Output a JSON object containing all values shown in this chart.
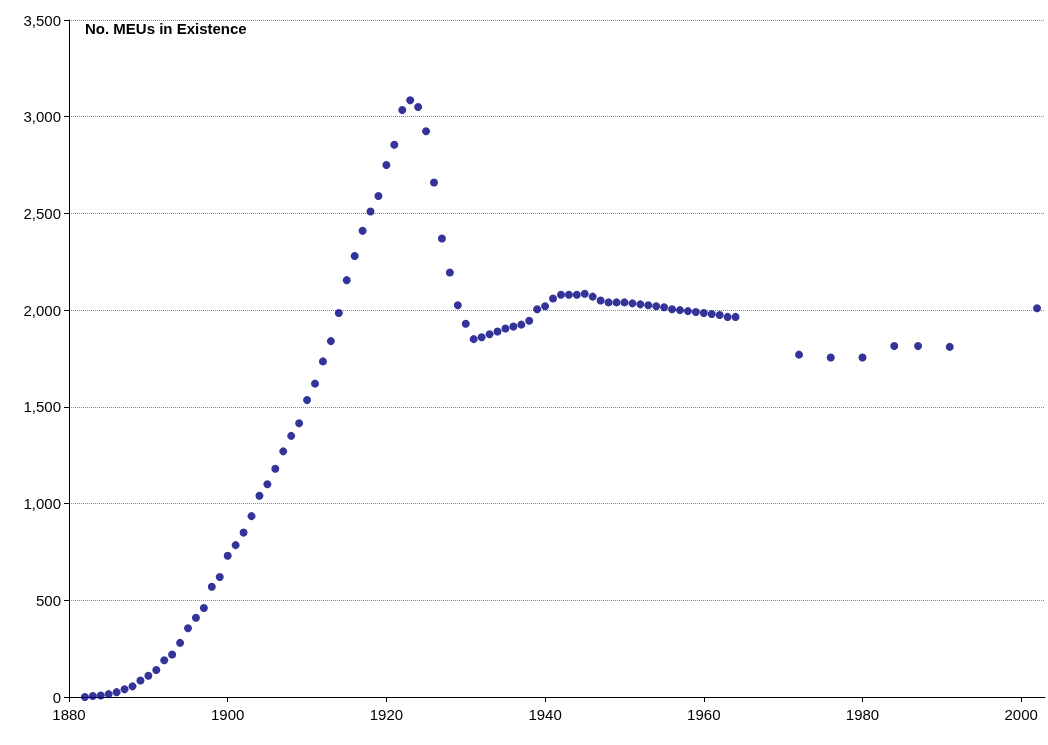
{
  "chart_data": {
    "type": "scatter",
    "title": "No. MEUs in Existence",
    "x": [
      1882,
      1883,
      1884,
      1885,
      1886,
      1887,
      1888,
      1889,
      1890,
      1891,
      1892,
      1893,
      1894,
      1895,
      1896,
      1897,
      1898,
      1899,
      1900,
      1901,
      1902,
      1903,
      1904,
      1905,
      1906,
      1907,
      1908,
      1909,
      1910,
      1911,
      1912,
      1913,
      1914,
      1915,
      1916,
      1917,
      1918,
      1919,
      1920,
      1921,
      1922,
      1923,
      1924,
      1925,
      1926,
      1927,
      1928,
      1929,
      1930,
      1931,
      1932,
      1933,
      1934,
      1935,
      1936,
      1937,
      1938,
      1939,
      1940,
      1941,
      1942,
      1943,
      1944,
      1945,
      1946,
      1947,
      1948,
      1949,
      1950,
      1951,
      1952,
      1953,
      1954,
      1955,
      1956,
      1957,
      1958,
      1959,
      1960,
      1961,
      1962,
      1963,
      1964,
      1972,
      1976,
      1980,
      1984,
      1987,
      1991,
      2002
    ],
    "values": [
      0,
      5,
      8,
      15,
      25,
      40,
      55,
      85,
      110,
      140,
      190,
      220,
      280,
      355,
      410,
      460,
      570,
      620,
      730,
      785,
      850,
      935,
      1040,
      1100,
      1180,
      1270,
      1350,
      1415,
      1535,
      1620,
      1735,
      1840,
      1985,
      2155,
      2280,
      2410,
      2510,
      2590,
      2750,
      2855,
      3035,
      3085,
      3050,
      2925,
      2660,
      2370,
      2195,
      2025,
      1930,
      1850,
      1860,
      1875,
      1890,
      1905,
      1915,
      1925,
      1945,
      2005,
      2020,
      2060,
      2080,
      2080,
      2080,
      2085,
      2070,
      2050,
      2040,
      2040,
      2040,
      2035,
      2030,
      2025,
      2020,
      2015,
      2005,
      2000,
      1995,
      1990,
      1985,
      1980,
      1975,
      1965,
      1965,
      1770,
      1755,
      1755,
      1815,
      1815,
      1810,
      2010
    ],
    "color": "#000080",
    "marker": "circle",
    "xlim": [
      1880,
      2003
    ],
    "xticks": [
      1880,
      1900,
      1920,
      1940,
      1960,
      1980,
      2000
    ],
    "ylim": [
      0,
      3500
    ],
    "yticks": [
      {
        "value": 0,
        "label": "0"
      },
      {
        "value": 500,
        "label": "500"
      },
      {
        "value": 1000,
        "label": "1,000"
      },
      {
        "value": 1500,
        "label": "1,500"
      },
      {
        "value": 2000,
        "label": "2,000"
      },
      {
        "value": 2500,
        "label": "2,500"
      },
      {
        "value": 3000,
        "label": "3,000"
      },
      {
        "value": 3500,
        "label": "3,500"
      }
    ],
    "grid": "y"
  }
}
